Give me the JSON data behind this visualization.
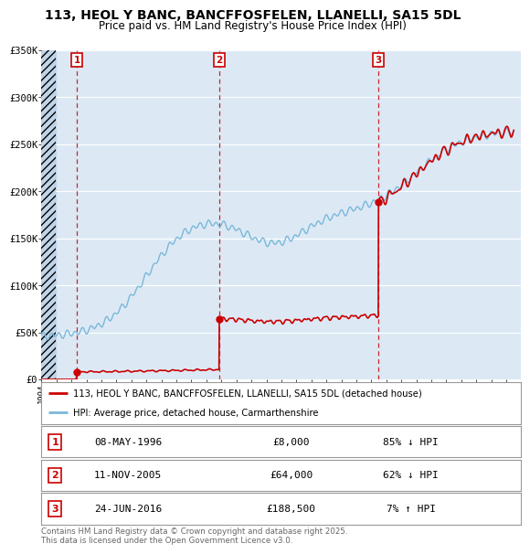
{
  "title": "113, HEOL Y BANC, BANCFFOSFELEN, LLANELLI, SA15 5DL",
  "subtitle": "Price paid vs. HM Land Registry's House Price Index (HPI)",
  "title_fontsize": 10,
  "subtitle_fontsize": 8.5,
  "background_color": "#ffffff",
  "plot_bg_color": "#dce9f5",
  "hatch_bg_color": "#c0d4e8",
  "ylim": [
    0,
    350000
  ],
  "yticks": [
    0,
    50000,
    100000,
    150000,
    200000,
    250000,
    300000,
    350000
  ],
  "ytick_labels": [
    "£0",
    "£50K",
    "£100K",
    "£150K",
    "£200K",
    "£250K",
    "£300K",
    "£350K"
  ],
  "sale_dates_num": [
    1996.36,
    2005.86,
    2016.48
  ],
  "sale_prices": [
    8000,
    64000,
    188500
  ],
  "sale_labels": [
    "1",
    "2",
    "3"
  ],
  "vline_color": "#cc0000",
  "sale_color": "#cc0000",
  "hpi_color": "#7ab8d9",
  "legend_sale_label": "113, HEOL Y BANC, BANCFFOSFELEN, LLANELLI, SA15 5DL (detached house)",
  "legend_hpi_label": "HPI: Average price, detached house, Carmarthenshire",
  "table_entries": [
    {
      "num": "1",
      "date": "08-MAY-1996",
      "price": "£8,000",
      "pct": "85% ↓ HPI"
    },
    {
      "num": "2",
      "date": "11-NOV-2005",
      "price": "£64,000",
      "pct": "62% ↓ HPI"
    },
    {
      "num": "3",
      "date": "24-JUN-2016",
      "price": "£188,500",
      "pct": "7% ↑ HPI"
    }
  ],
  "footer": "Contains HM Land Registry data © Crown copyright and database right 2025.\nThis data is licensed under the Open Government Licence v3.0.",
  "xmin": 1994,
  "xmax": 2026
}
